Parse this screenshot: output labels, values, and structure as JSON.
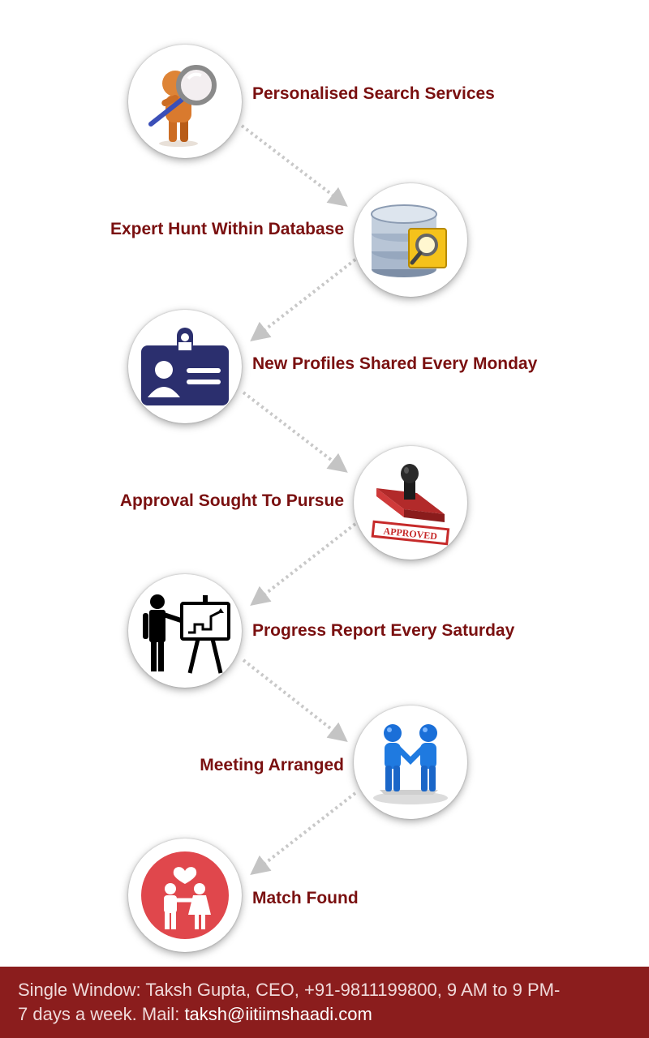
{
  "steps": [
    {
      "label": "Personalised Search Services",
      "icon": "magnifier-person-icon"
    },
    {
      "label": "Expert Hunt Within Database",
      "icon": "database-search-icon"
    },
    {
      "label": "New Profiles Shared Every Monday",
      "icon": "profile-card-icon"
    },
    {
      "label": "Approval Sought To Pursue",
      "icon": "approved-stamp-icon"
    },
    {
      "label": "Progress Report Every Saturday",
      "icon": "presentation-icon"
    },
    {
      "label": "Meeting Arranged",
      "icon": "handshake-icon"
    },
    {
      "label": "Match Found",
      "icon": "couple-heart-icon"
    }
  ],
  "stamp_text": "APPROVED",
  "footer": {
    "line1": "Single Window: Taksh Gupta, CEO, +91-9811199800, 9 AM to 9 PM-",
    "line2_prefix": "7 days a week. Mail: ",
    "email": "taksh@iitiimshaadi.com"
  },
  "colors": {
    "label": "#7a1010",
    "footer_bg": "#8b1d1d",
    "connector": "#c8c8c8",
    "card_blue": "#2b2f6e",
    "heart_red": "#e0474c"
  }
}
